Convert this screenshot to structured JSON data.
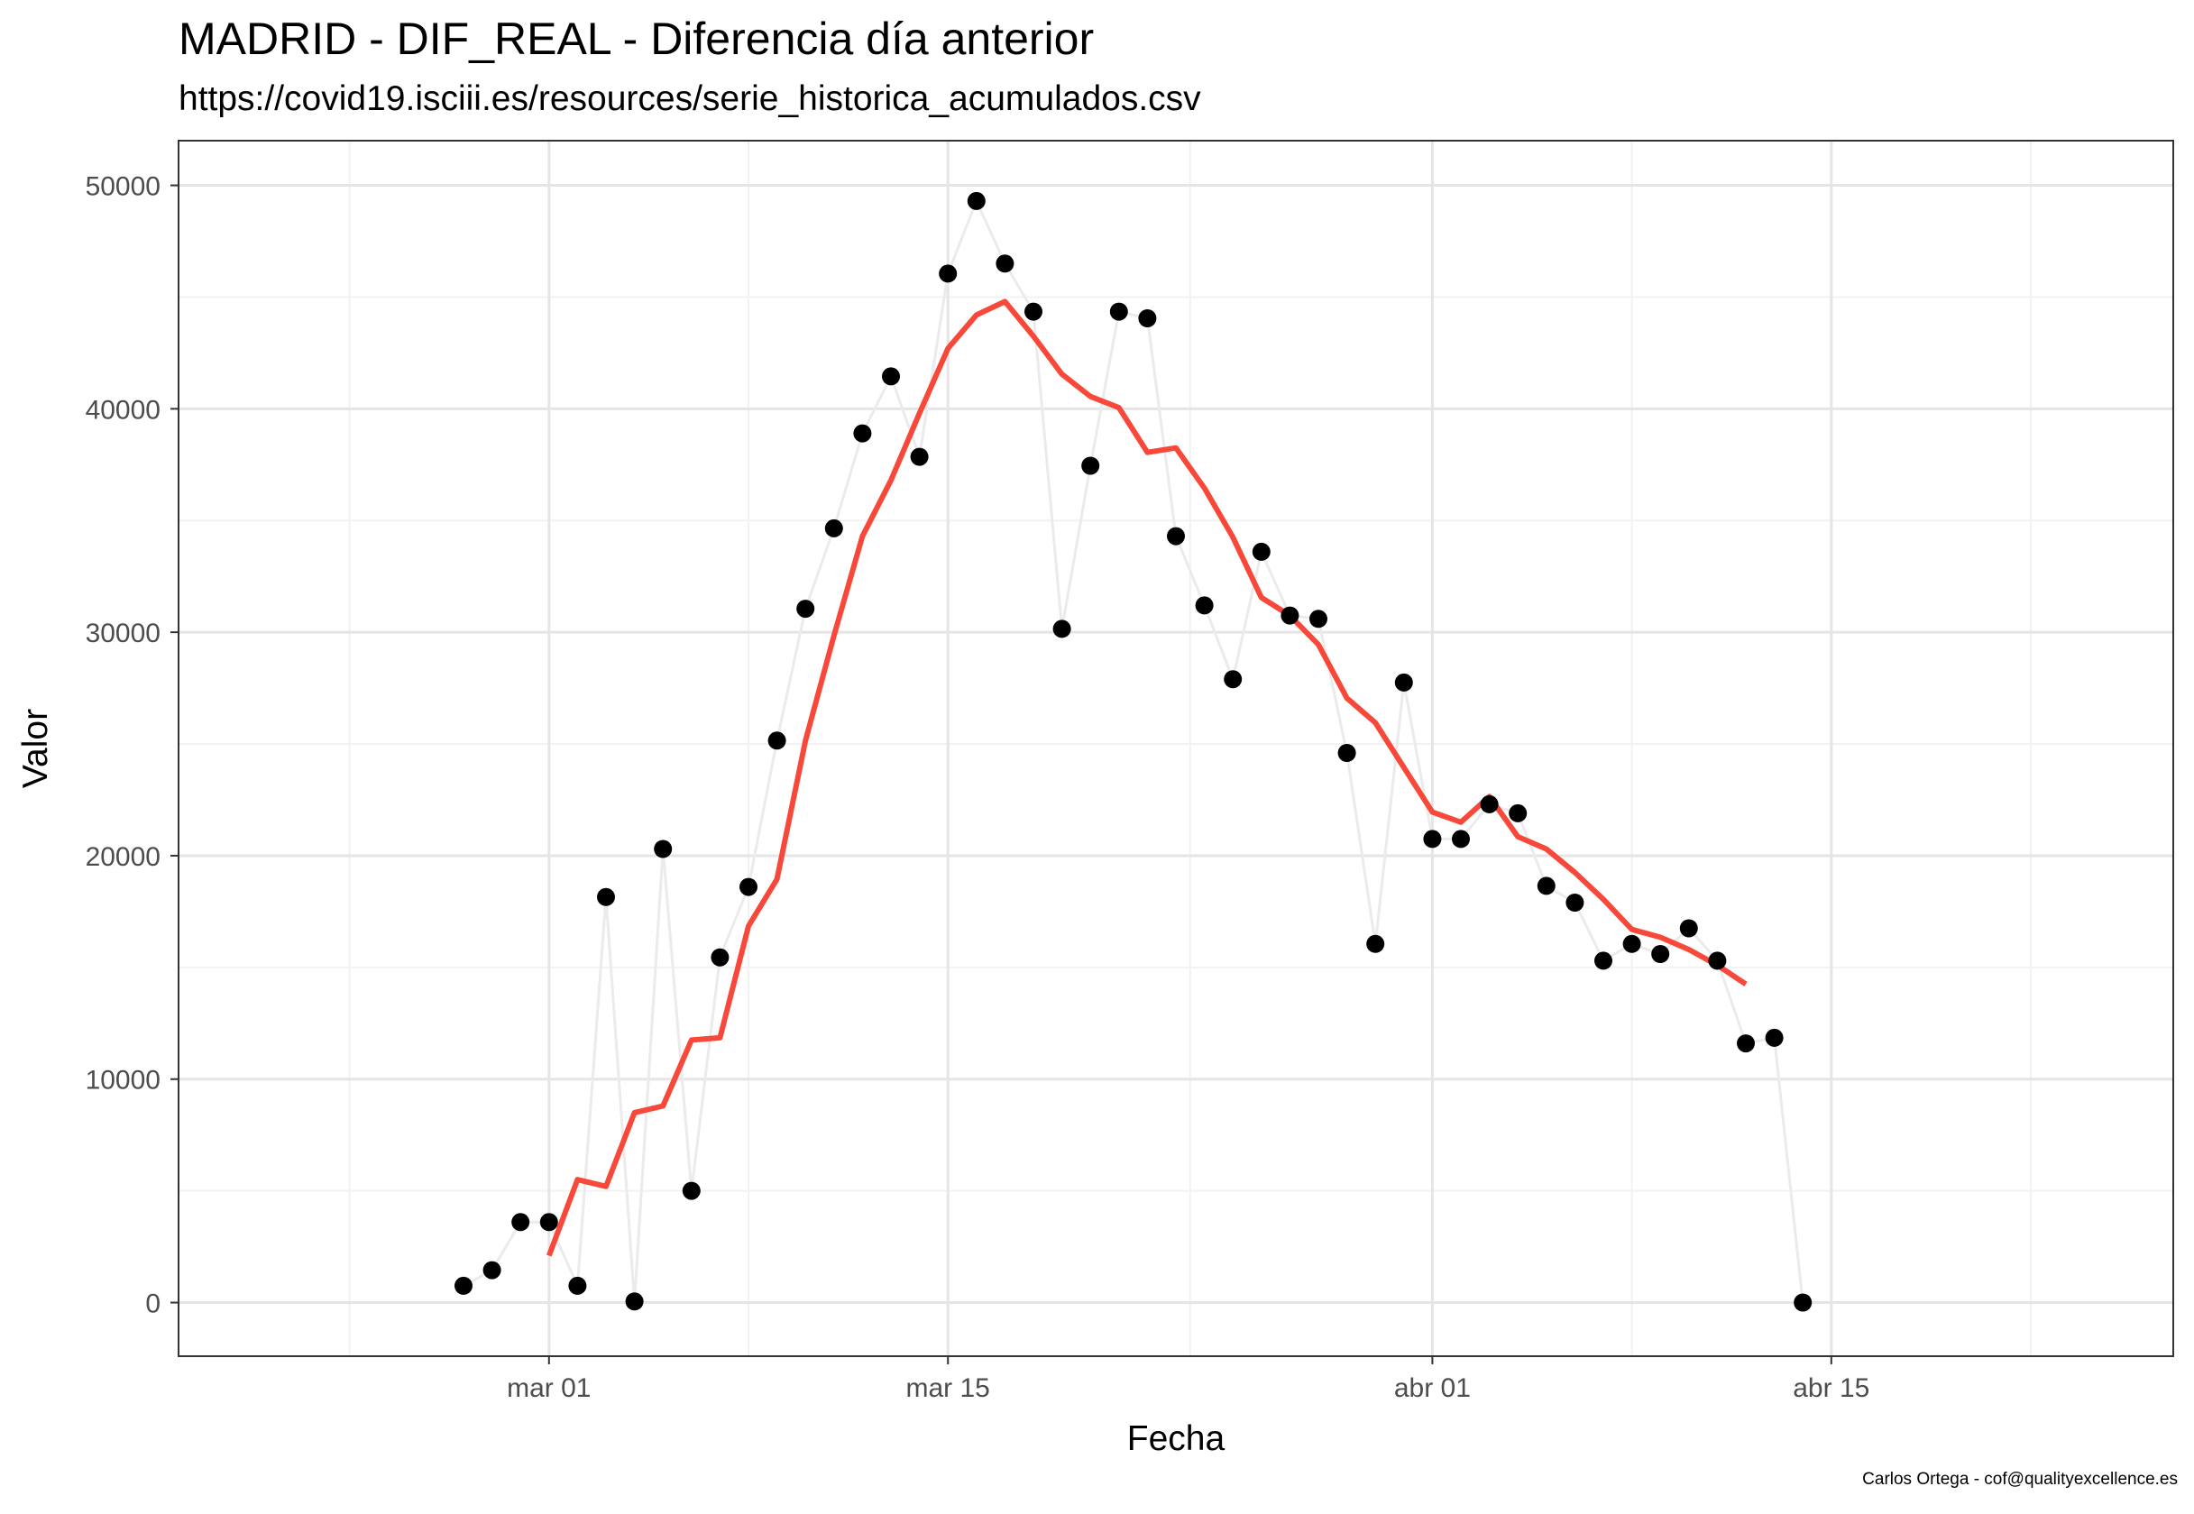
{
  "title": "MADRID - DIF_REAL - Diferencia día anterior",
  "subtitle": "https://covid19.isciii.es/resources/serie_historica_acumulados.csv",
  "caption": "Carlos Ortega - cof@qualityexcellence.es",
  "colors": {
    "points": "#000000",
    "line": "#EBEBEB",
    "trend": "#F8483A",
    "grid_major": "#E5E5E5",
    "grid_minor": "#F2F2F2",
    "border": "#333333"
  },
  "chart_data": {
    "type": "scatter",
    "xlabel": "Fecha",
    "ylabel": "Valor",
    "x_ticks": [
      {
        "date": "2020-03-01",
        "label": "mar 01"
      },
      {
        "date": "2020-03-15",
        "label": "mar 15"
      },
      {
        "date": "2020-04-01",
        "label": "abr 01"
      },
      {
        "date": "2020-04-15",
        "label": "abr 15"
      }
    ],
    "x_range": [
      "2020-02-17",
      "2020-04-27"
    ],
    "y_ticks": [
      0,
      10000,
      20000,
      30000,
      40000,
      50000
    ],
    "ylim": [
      -2400,
      52000
    ],
    "grid": true,
    "series": [
      {
        "kind": "points_with_line",
        "x": [
          "2020-02-27",
          "2020-02-28",
          "2020-02-29",
          "2020-03-01",
          "2020-03-02",
          "2020-03-03",
          "2020-03-04",
          "2020-03-05",
          "2020-03-06",
          "2020-03-07",
          "2020-03-08",
          "2020-03-09",
          "2020-03-10",
          "2020-03-11",
          "2020-03-12",
          "2020-03-13",
          "2020-03-14",
          "2020-03-15",
          "2020-03-16",
          "2020-03-17",
          "2020-03-18",
          "2020-03-19",
          "2020-03-20",
          "2020-03-21",
          "2020-03-22",
          "2020-03-23",
          "2020-03-24",
          "2020-03-25",
          "2020-03-26",
          "2020-03-27",
          "2020-03-28",
          "2020-03-29",
          "2020-03-30",
          "2020-03-31",
          "2020-04-01",
          "2020-04-02",
          "2020-04-03",
          "2020-04-04",
          "2020-04-05",
          "2020-04-06",
          "2020-04-07",
          "2020-04-08",
          "2020-04-09",
          "2020-04-10",
          "2020-04-11",
          "2020-04-12",
          "2020-04-13",
          "2020-04-14"
        ],
        "y": [
          750,
          1450,
          3600,
          3600,
          750,
          18150,
          50,
          20300,
          5000,
          15450,
          18600,
          25150,
          31050,
          34650,
          38900,
          41450,
          37850,
          46050,
          49300,
          46500,
          44350,
          30150,
          37450,
          44350,
          44050,
          34300,
          31200,
          27900,
          33600,
          30750,
          30600,
          24600,
          16050,
          27750,
          20750,
          20750,
          22300,
          21900,
          18650,
          17900,
          15300,
          16050,
          15600,
          16750,
          15300,
          11600,
          11850,
          0
        ]
      },
      {
        "kind": "trend",
        "x": [
          "2020-03-01",
          "2020-03-02",
          "2020-03-03",
          "2020-03-04",
          "2020-03-05",
          "2020-03-06",
          "2020-03-07",
          "2020-03-08",
          "2020-03-09",
          "2020-03-10",
          "2020-03-11",
          "2020-03-12",
          "2020-03-13",
          "2020-03-14",
          "2020-03-15",
          "2020-03-16",
          "2020-03-17",
          "2020-03-18",
          "2020-03-19",
          "2020-03-20",
          "2020-03-21",
          "2020-03-22",
          "2020-03-23",
          "2020-03-24",
          "2020-03-25",
          "2020-03-26",
          "2020-03-27",
          "2020-03-28",
          "2020-03-29",
          "2020-03-30",
          "2020-03-31",
          "2020-04-01",
          "2020-04-02",
          "2020-04-03",
          "2020-04-04",
          "2020-04-05",
          "2020-04-06",
          "2020-04-07",
          "2020-04-08",
          "2020-04-09",
          "2020-04-10",
          "2020-04-11",
          "2020-04-12"
        ],
        "y": [
          2100,
          5500,
          5200,
          8500,
          8800,
          11750,
          11850,
          16850,
          18950,
          25150,
          29850,
          34300,
          36800,
          39800,
          42700,
          44200,
          44800,
          43250,
          41550,
          40550,
          40050,
          38050,
          38250,
          36450,
          34250,
          31550,
          30750,
          29450,
          27050,
          25950,
          23950,
          21950,
          21500,
          22650,
          20850,
          20300,
          19250,
          18050,
          16700,
          16350,
          15800,
          15100,
          14250
        ]
      }
    ]
  }
}
